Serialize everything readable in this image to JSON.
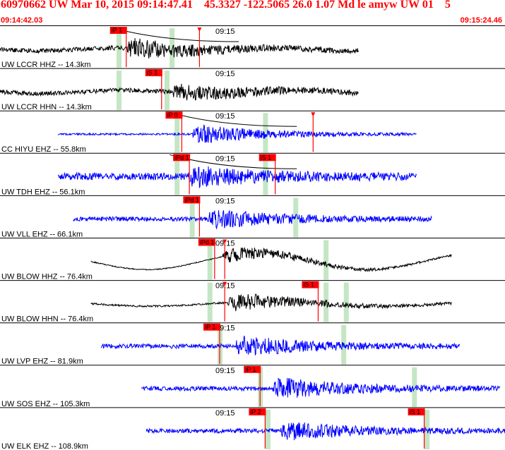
{
  "header": {
    "title": "60970662 UW Mar 10, 2015 09:14:47.41    45.3327 -122.5065 26.0 1.07 Md le amyw UW 01    5",
    "time_start": "09:14:42.03",
    "time_end": "09:15:24.46"
  },
  "colors": {
    "header_red": "#ff0000",
    "pick_red": "#ff0000",
    "window_green": "#c4e6c4",
    "trace_black": "#000000",
    "trace_blue": "#0000ff"
  },
  "time_marker_label": "09:15",
  "traces": [
    {
      "label": "UW LCCR HHZ -- 14.3km",
      "color": "black",
      "trace_start": 0.0,
      "trace_end": 0.71,
      "onset": 0.25,
      "amp": 0.55,
      "noise": 0.12,
      "swell": 0.08,
      "picks": [
        {
          "text": "iP 1",
          "t": 0.25
        },
        {
          "text": "",
          "t": 0.395
        }
      ],
      "windows": [
        0.235,
        0.34
      ],
      "has_curve": true
    },
    {
      "label": "UW LCCR HHN -- 14.3km",
      "color": "black",
      "trace_start": 0.0,
      "trace_end": 0.71,
      "onset": 0.34,
      "amp": 0.45,
      "noise": 0.12,
      "swell": 0.1,
      "picks": [
        {
          "text": "iS 1",
          "t": 0.32
        }
      ],
      "windows": [
        0.235,
        0.33
      ],
      "has_curve": false
    },
    {
      "label": "CC HIYU EHZ -- 55.8km",
      "color": "blue",
      "trace_start": 0.115,
      "trace_end": 0.825,
      "onset": 0.38,
      "amp": 0.55,
      "noise": 0.05,
      "swell": 0.0,
      "picks": [
        {
          "text": "iP 0",
          "t": 0.36
        },
        {
          "text": "",
          "t": 0.62
        }
      ],
      "windows": [
        0.35,
        0.525
      ],
      "has_curve": true
    },
    {
      "label": "UW TDH EHZ -- 56.1km",
      "color": "blue",
      "trace_start": 0.115,
      "trace_end": 0.825,
      "onset": 0.37,
      "amp": 0.5,
      "noise": 0.2,
      "swell": 0.0,
      "picks": [
        {
          "text": "iPd 1",
          "t": 0.375
        },
        {
          "text": "iS 1",
          "t": 0.545
        }
      ],
      "windows": [
        0.35,
        0.525
      ],
      "has_curve": true
    },
    {
      "label": "UW VLL EHZ -- 66.1km",
      "color": "blue",
      "trace_start": 0.145,
      "trace_end": 0.855,
      "onset": 0.41,
      "amp": 0.5,
      "noise": 0.12,
      "swell": 0.0,
      "picks": [
        {
          "text": "iPd 1",
          "t": 0.395
        }
      ],
      "windows": [
        0.38,
        0.585
      ],
      "has_curve": false
    },
    {
      "label": "UW BLOW HHZ -- 76.4km",
      "color": "black",
      "trace_start": 0.18,
      "trace_end": 0.895,
      "onset": 0.44,
      "amp": 0.45,
      "noise": 0.03,
      "swell": 0.5,
      "picks": [
        {
          "text": "iPd 1",
          "t": 0.425
        },
        {
          "text": "",
          "t": 0.445
        }
      ],
      "windows": [
        0.415,
        0.645
      ],
      "has_curve": false
    },
    {
      "label": "UW BLOW HHN -- 76.4km",
      "color": "black",
      "trace_start": 0.18,
      "trace_end": 0.895,
      "onset": 0.45,
      "amp": 0.55,
      "noise": 0.05,
      "swell": 0.15,
      "picks": [
        {
          "text": "",
          "t": 0.445
        },
        {
          "text": "iS 1",
          "t": 0.63
        }
      ],
      "windows": [
        0.415,
        0.645,
        0.685
      ],
      "has_curve": false
    },
    {
      "label": "UW LVP EHZ -- 81.9km",
      "color": "blue",
      "trace_start": 0.2,
      "trace_end": 0.91,
      "onset": 0.465,
      "amp": 0.55,
      "noise": 0.12,
      "swell": 0.0,
      "picks": [
        {
          "text": "iP 1",
          "t": 0.435
        }
      ],
      "windows": [
        0.435,
        0.68
      ],
      "has_curve": false
    },
    {
      "label": "UW SOS EHZ -- 105.3km",
      "color": "blue",
      "trace_start": 0.28,
      "trace_end": 0.99,
      "onset": 0.54,
      "amp": 0.6,
      "noise": 0.12,
      "swell": 0.0,
      "picks": [
        {
          "text": "iP 1",
          "t": 0.515
        }
      ],
      "windows": [
        0.515,
        0.82
      ],
      "has_curve": false
    },
    {
      "label": "UW ELK EHZ -- 108.9km",
      "color": "blue",
      "trace_start": 0.29,
      "trace_end": 1.0,
      "onset": 0.555,
      "amp": 0.5,
      "noise": 0.12,
      "swell": 0.0,
      "picks": [
        {
          "text": "iP 2",
          "t": 0.525
        },
        {
          "text": "iS 1",
          "t": 0.84
        }
      ],
      "windows": [
        0.53,
        0.845
      ],
      "has_curve": false
    }
  ]
}
